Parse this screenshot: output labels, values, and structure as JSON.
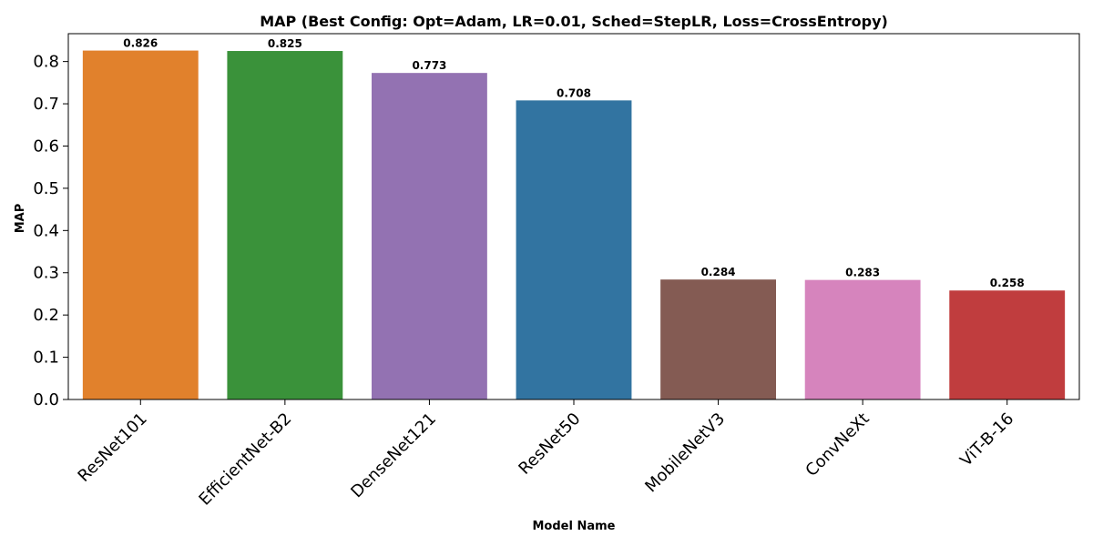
{
  "chart_data": {
    "type": "bar",
    "title": "MAP (Best Config: Opt=Adam, LR=0.01, Sched=StepLR, Loss=CrossEntropy)",
    "xlabel": "Model Name",
    "ylabel": "MAP",
    "categories": [
      "ResNet101",
      "EfficientNet-B2",
      "DenseNet121",
      "ResNet50",
      "MobileNetV3",
      "ConvNeXt",
      "ViT-B-16"
    ],
    "values": [
      0.826,
      0.825,
      0.773,
      0.708,
      0.284,
      0.283,
      0.258
    ],
    "data_labels": [
      "0.826",
      "0.825",
      "0.773",
      "0.708",
      "0.284",
      "0.283",
      "0.258"
    ],
    "colors": [
      "#e1812c",
      "#3a923a",
      "#9372b2",
      "#3274a1",
      "#845b53",
      "#d684bd",
      "#c03d3e"
    ],
    "ylim": [
      0,
      0.866
    ],
    "yticks": [
      0.0,
      0.1,
      0.2,
      0.3,
      0.4,
      0.5,
      0.6,
      0.7,
      0.8
    ],
    "ytick_labels": [
      "0.0",
      "0.1",
      "0.2",
      "0.3",
      "0.4",
      "0.5",
      "0.6",
      "0.7",
      "0.8"
    ],
    "grid": false,
    "legend": "none"
  }
}
